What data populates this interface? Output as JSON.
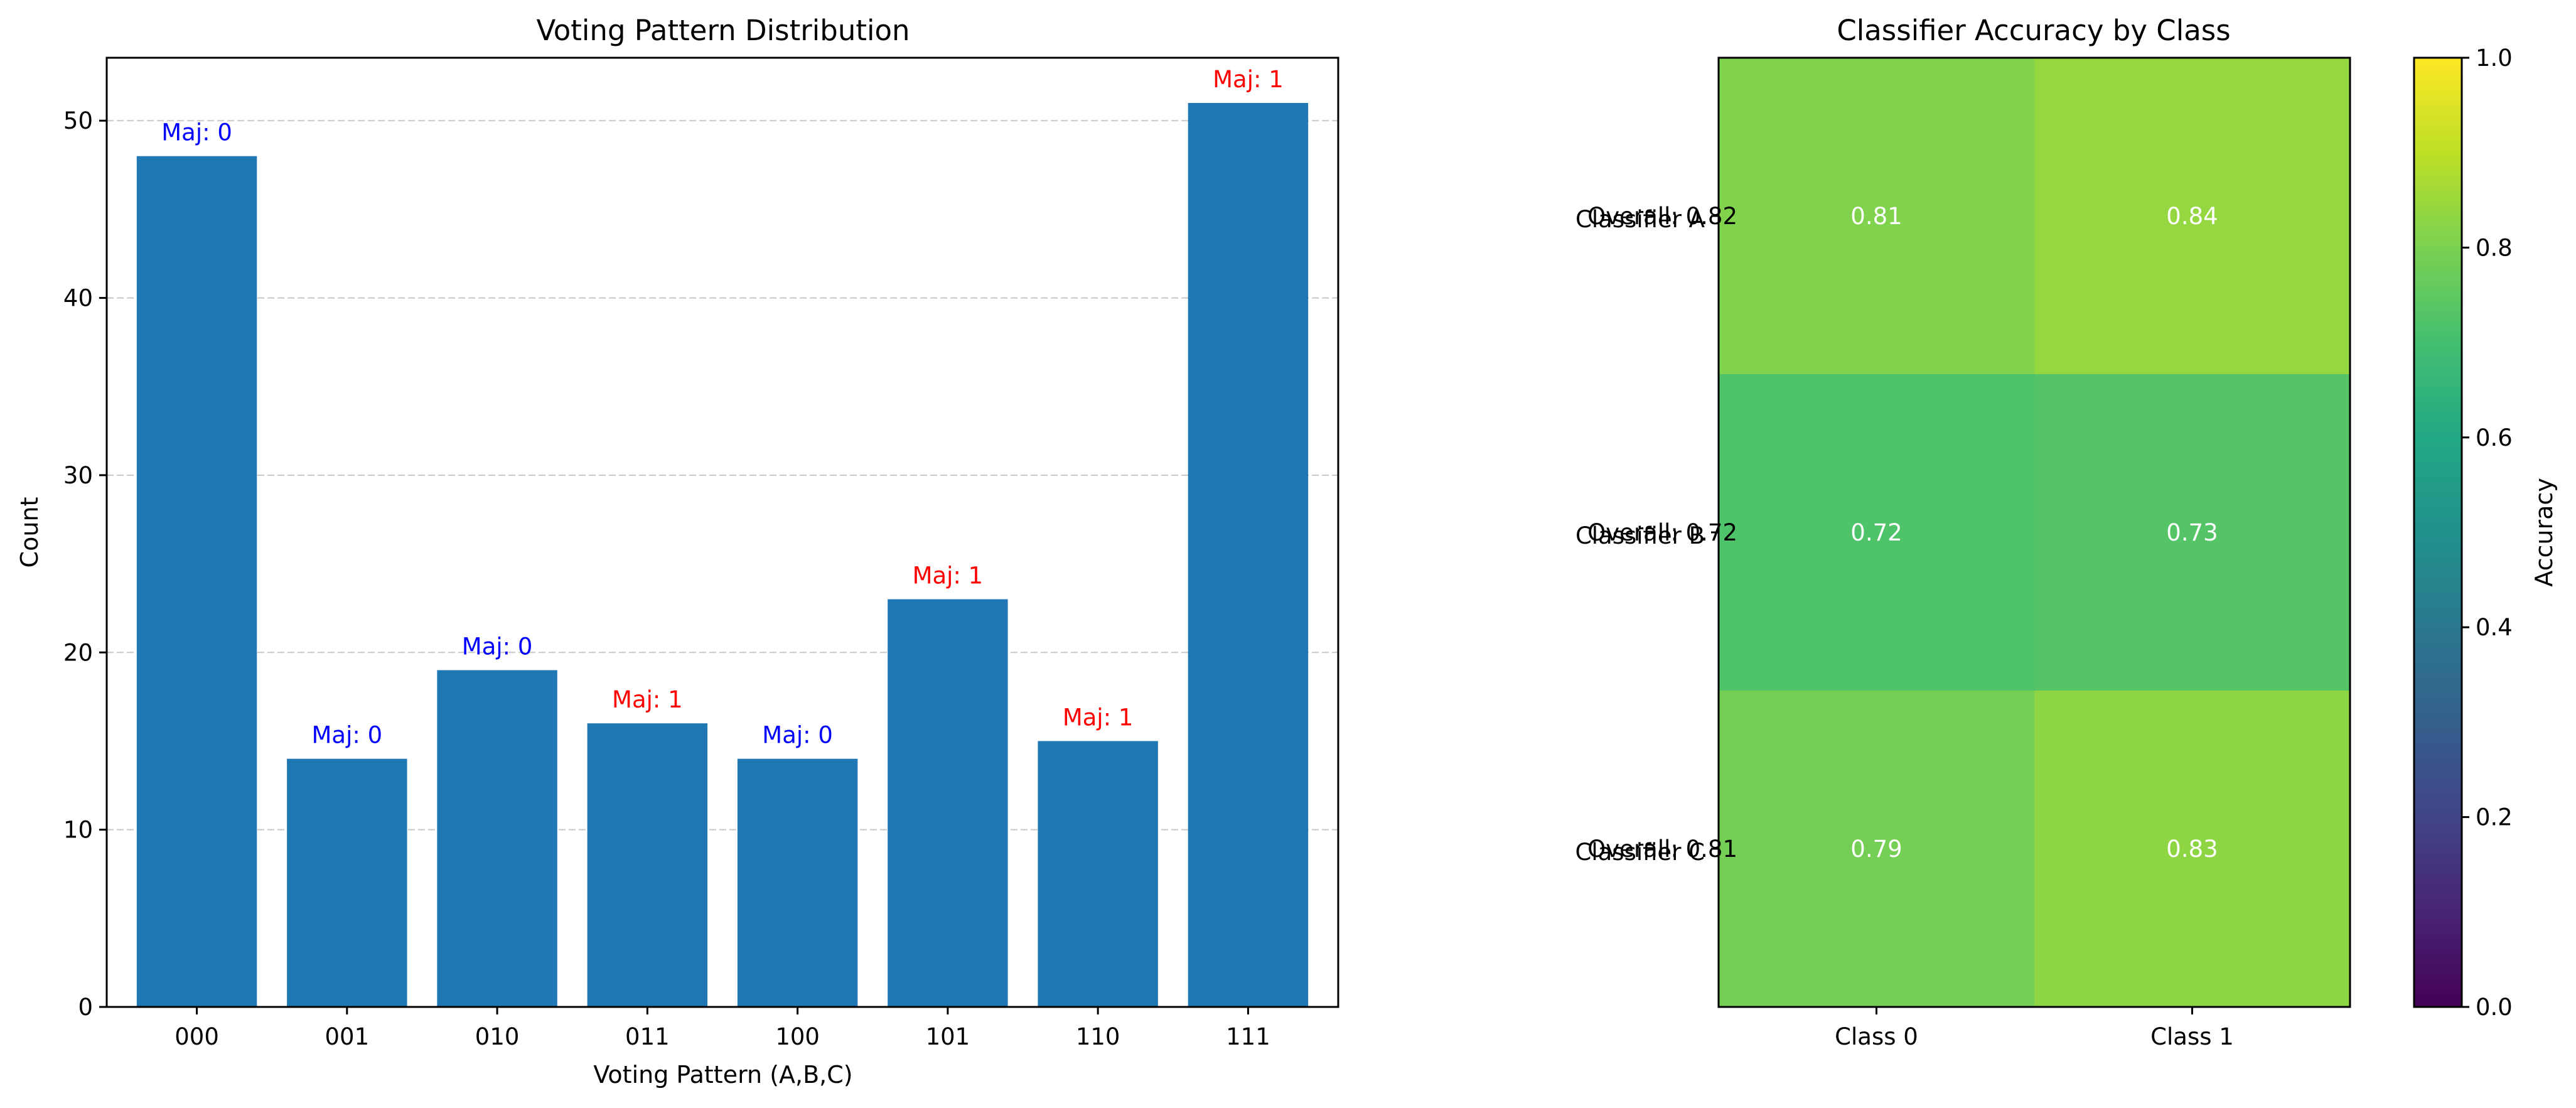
{
  "chart_data": [
    {
      "type": "bar",
      "title": "Voting Pattern Distribution",
      "xlabel": "Voting Pattern (A,B,C)",
      "ylabel": "Count",
      "categories": [
        "000",
        "001",
        "010",
        "011",
        "100",
        "101",
        "110",
        "111"
      ],
      "values": [
        48,
        14,
        19,
        16,
        14,
        23,
        15,
        51
      ],
      "bar_labels": [
        "Maj: 0",
        "Maj: 0",
        "Maj: 0",
        "Maj: 1",
        "Maj: 0",
        "Maj: 1",
        "Maj: 1",
        "Maj: 1"
      ],
      "bar_label_colors": [
        "#0000ff",
        "#0000ff",
        "#0000ff",
        "#ff0000",
        "#0000ff",
        "#ff0000",
        "#ff0000",
        "#ff0000"
      ],
      "bar_color": "#1f77b4",
      "ylim": [
        0,
        53.55
      ],
      "yticks": [
        0,
        10,
        20,
        30,
        40,
        50
      ],
      "grid": "y, dashed"
    },
    {
      "type": "heatmap",
      "title": "Classifier Accuracy by Class",
      "rows": [
        "Classifier A",
        "Classifier B",
        "Classifier C"
      ],
      "columns": [
        "Class 0",
        "Class 1"
      ],
      "values": [
        [
          0.81,
          0.84
        ],
        [
          0.72,
          0.73
        ],
        [
          0.79,
          0.83
        ]
      ],
      "row_annotations": [
        "Overall: 0.82",
        "Overall: 0.72",
        "Overall: 0.81"
      ],
      "colormap": "viridis",
      "colorbar": {
        "label": "Accuracy",
        "range": [
          0,
          1
        ],
        "ticks": [
          "0.0",
          "0.2",
          "0.4",
          "0.6",
          "0.8",
          "1.0"
        ]
      }
    }
  ]
}
